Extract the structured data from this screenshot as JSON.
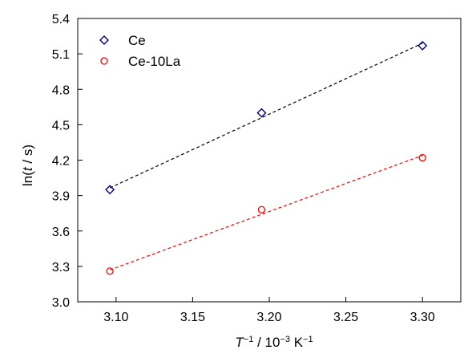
{
  "chart_data": {
    "type": "scatter",
    "xlabel": {
      "symbol": "T",
      "sup1": "−1",
      "mid": " / 10",
      "sup2": "−3",
      "unit": " K",
      "sup3": "−1"
    },
    "ylabel": {
      "prefix": "ln(",
      "symbol": "t",
      "suffix": " / s)"
    },
    "xlim": [
      3.075,
      3.325
    ],
    "ylim": [
      3.0,
      5.4
    ],
    "xticks": [
      3.1,
      3.15,
      3.2,
      3.25,
      3.3
    ],
    "xtick_labels": [
      "3.10",
      "3.15",
      "3.20",
      "3.25",
      "3.30"
    ],
    "yticks": [
      3.0,
      3.3,
      3.6,
      3.9,
      4.2,
      4.5,
      4.8,
      5.1,
      5.4
    ],
    "ytick_labels": [
      "3.0",
      "3.3",
      "3.6",
      "3.9",
      "4.2",
      "4.5",
      "4.8",
      "5.1",
      "5.4"
    ],
    "grid": false,
    "legend_position": "top-left",
    "series": [
      {
        "name": "Ce",
        "marker": "diamond",
        "color": "#00008b",
        "fit_color": "#000000",
        "x": [
          3.096,
          3.195,
          3.3
        ],
        "y": [
          3.95,
          4.6,
          5.17
        ],
        "fit": [
          [
            3.096,
            3.965
          ],
          [
            3.3,
            5.19
          ]
        ]
      },
      {
        "name": "Ce-10La",
        "marker": "circle",
        "color": "#ff0000",
        "fit_color": "#ff0000",
        "x": [
          3.096,
          3.195,
          3.3
        ],
        "y": [
          3.26,
          3.78,
          4.22
        ],
        "fit": [
          [
            3.096,
            3.27
          ],
          [
            3.3,
            4.24
          ]
        ]
      }
    ]
  }
}
